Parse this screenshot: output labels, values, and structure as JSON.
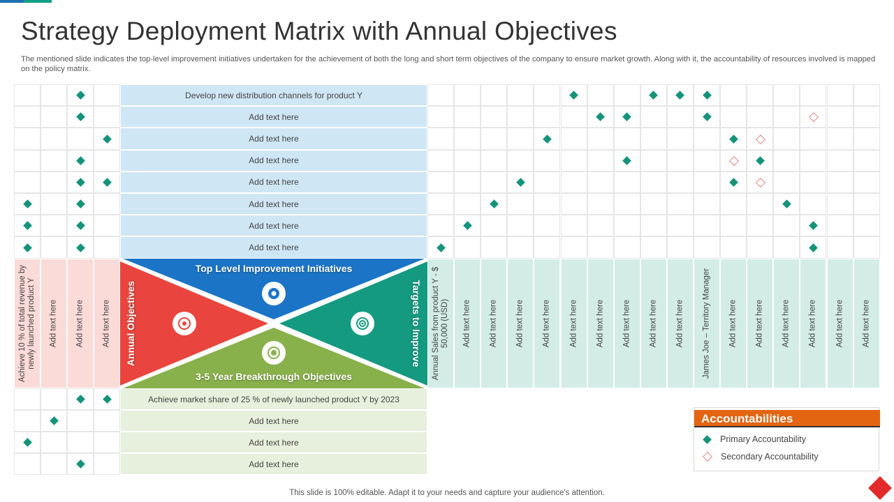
{
  "title": "Strategy Deployment Matrix with Annual Objectives",
  "description": "The mentioned slide indicates the top-level improvement initiatives undertaken for the achievement of both the long and short term objectives of the company to ensure market growth. Along with it, the accountability of resources involved is mapped on the policy matrix.",
  "footer": "This slide is 100% editable. Adapt it to your needs and capture your audience's attention.",
  "center": {
    "top": "Top Level Improvement Initiatives",
    "bottom": "3-5 Year Breakthrough Objectives",
    "left": "Annual Objectives",
    "right": "Targets to Improve",
    "icons": [
      "initiative-icon",
      "objectives-icon",
      "target-icon",
      "breakthrough-icon"
    ]
  },
  "initiatives": [
    "Develop new distribution channels for product Y",
    "Add text here",
    "Add text here",
    "Add text here",
    "Add text here",
    "Add text here",
    "Add text here",
    "Add text here"
  ],
  "breakthrough_objectives": [
    "Achieve market share of 25 % of newly launched product Y by 2023",
    "Add text here",
    "Add text here",
    "Add text here"
  ],
  "annual_objectives": [
    "Achieve 10 % of total revenue by newly launched product Y",
    "Add text here",
    "Add text here",
    "Add text here"
  ],
  "targets": [
    "Annual Sales from product Y - $ 50,000 (USD)",
    "Add text here",
    "Add text here",
    "Add text here",
    "Add text here",
    "Add text here",
    "Add text here",
    "Add text here",
    "Add text here",
    "Add text here",
    "James Joe – Territory Manager",
    "Add text here",
    "Add text here",
    "Add text here",
    "Add text here",
    "Add text here",
    "Add text here"
  ],
  "top_left_marks": [
    [
      0,
      0,
      1,
      0
    ],
    [
      0,
      0,
      1,
      0
    ],
    [
      0,
      0,
      0,
      1
    ],
    [
      0,
      0,
      1,
      0
    ],
    [
      0,
      0,
      1,
      1
    ],
    [
      1,
      0,
      1,
      0
    ],
    [
      1,
      0,
      1,
      0
    ],
    [
      1,
      0,
      1,
      0
    ]
  ],
  "bottom_left_marks": [
    [
      0,
      0,
      1,
      1
    ],
    [
      0,
      1,
      0,
      0
    ],
    [
      1,
      0,
      0,
      0
    ],
    [
      0,
      0,
      1,
      0
    ]
  ],
  "top_right_marks": [
    [
      0,
      0,
      0,
      0,
      0,
      1,
      0,
      0,
      1,
      1,
      1,
      0,
      0,
      0,
      0,
      0,
      0
    ],
    [
      0,
      0,
      0,
      0,
      0,
      0,
      1,
      1,
      0,
      0,
      1,
      0,
      0,
      0,
      2,
      0,
      0
    ],
    [
      0,
      0,
      0,
      0,
      1,
      0,
      0,
      0,
      0,
      0,
      0,
      1,
      2,
      0,
      0,
      0,
      0
    ],
    [
      0,
      0,
      0,
      0,
      0,
      0,
      0,
      1,
      0,
      0,
      0,
      2,
      1,
      0,
      0,
      0,
      0
    ],
    [
      0,
      0,
      0,
      1,
      0,
      0,
      0,
      0,
      0,
      0,
      0,
      1,
      2,
      0,
      0,
      0,
      0
    ],
    [
      0,
      0,
      1,
      0,
      0,
      0,
      0,
      0,
      0,
      0,
      0,
      0,
      0,
      1,
      0,
      0,
      0
    ],
    [
      0,
      1,
      0,
      0,
      0,
      0,
      0,
      0,
      0,
      0,
      0,
      0,
      0,
      0,
      1,
      0,
      0
    ],
    [
      1,
      0,
      0,
      0,
      0,
      0,
      0,
      0,
      0,
      0,
      0,
      0,
      0,
      0,
      1,
      0,
      0
    ]
  ],
  "legend": {
    "title": "Accountabilities",
    "primary": "Primary Accountability",
    "secondary": "Secondary Accountability"
  },
  "colors": {
    "primary_mark": "#14937a",
    "secondary_mark": "#e58a84",
    "top_triangle": "#1b74c5",
    "left_triangle": "#e9453e",
    "right_triangle": "#149a80",
    "bottom_triangle": "#88b04b",
    "legend_header": "#e36411"
  }
}
